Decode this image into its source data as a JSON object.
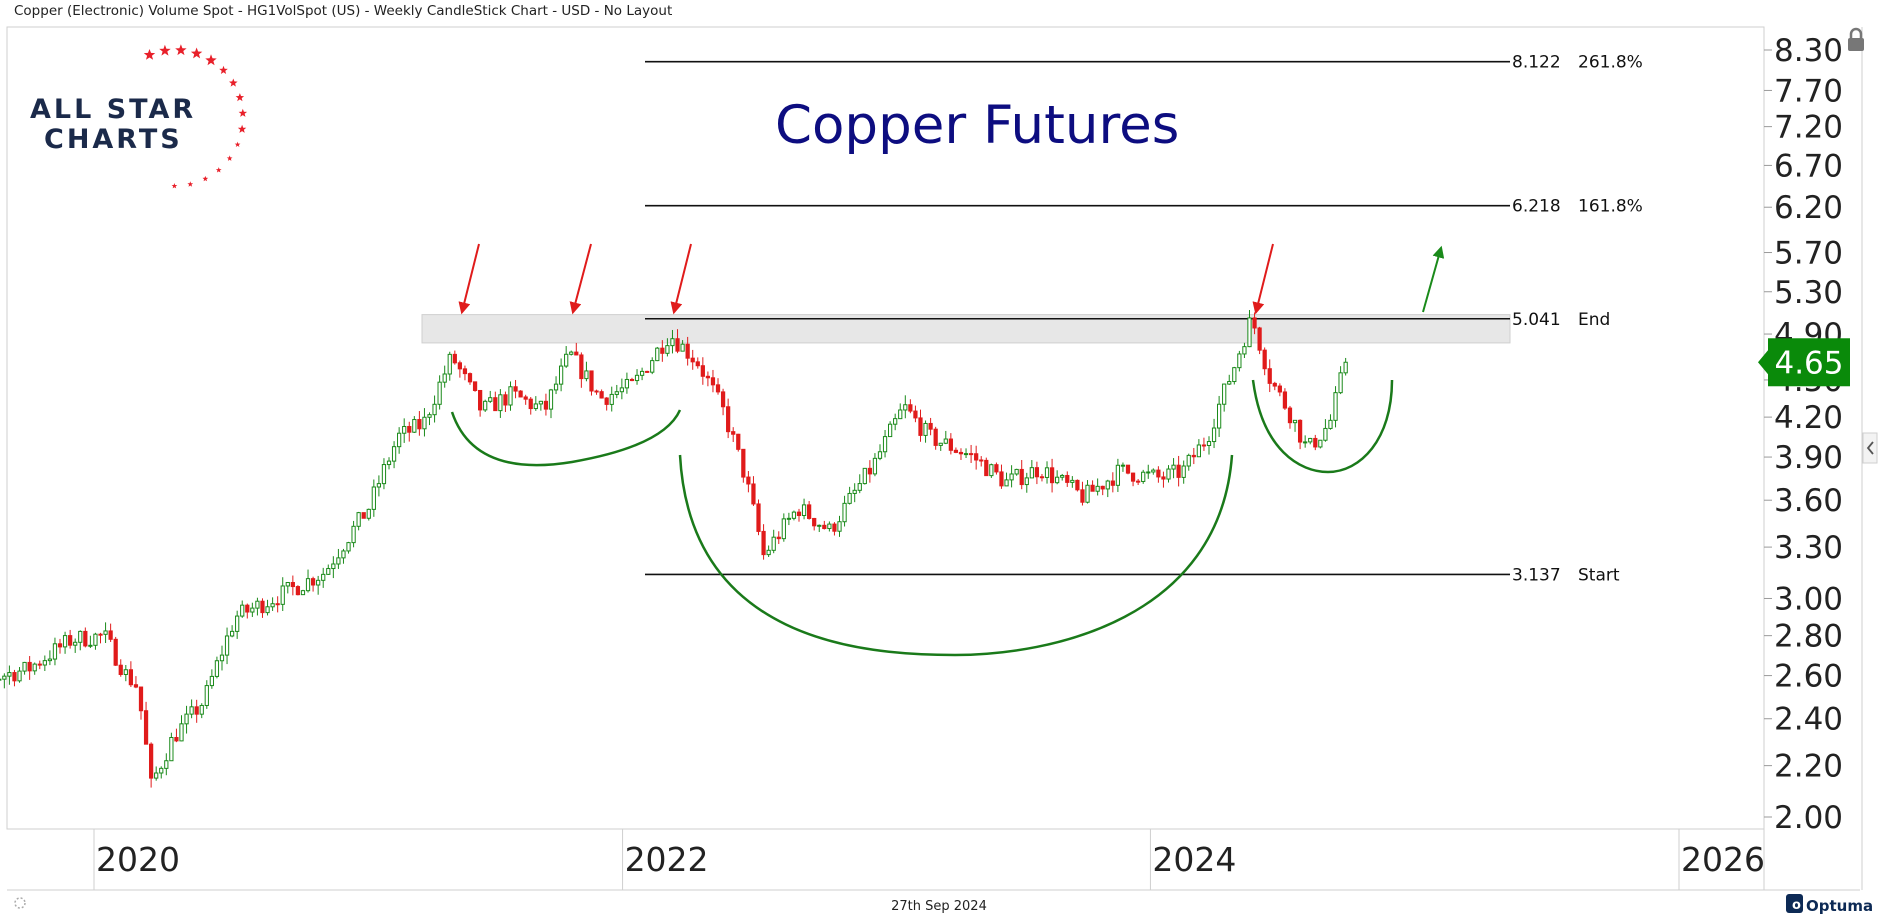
{
  "header": {
    "text": "Copper (Electronic) Volume Spot - HG1VolSpot (US) - Weekly CandleStick Chart - USD - No Layout"
  },
  "logo": {
    "line1": "ALL STAR",
    "line2": "CHARTS",
    "star_color": "#e8202a",
    "text_color": "#1b2a4a"
  },
  "footer": {
    "date": "27th Sep 2024",
    "brand": "Optuma",
    "brand_color": "#0d2a55"
  },
  "colors": {
    "up": "#1a8a1a",
    "down": "#e01b1b",
    "arc": "#1a7a1a",
    "title": "#0d0d80",
    "current_bg": "#0a8a0a"
  },
  "chart_data": {
    "type": "candlestick",
    "title": "Copper Futures",
    "frequency": "Weekly",
    "currency": "USD",
    "yscale": "log",
    "ylim": [
      1.98,
      8.5
    ],
    "xlim": [
      "2019-06-01",
      "2026-06-01"
    ],
    "y_ticks": [
      "2.00",
      "2.20",
      "2.40",
      "2.60",
      "2.80",
      "3.00",
      "3.30",
      "3.60",
      "3.90",
      "4.20",
      "4.50",
      "4.90",
      "5.30",
      "5.70",
      "6.20",
      "6.70",
      "7.20",
      "7.70",
      "8.30"
    ],
    "x_ticks": [
      "2020",
      "2022",
      "2024",
      "2026"
    ],
    "current_price": "4.65",
    "levels": [
      {
        "value": 8.122,
        "label": "8.122",
        "tag": "261.8%"
      },
      {
        "value": 6.218,
        "label": "6.218",
        "tag": "161.8%"
      },
      {
        "value": 5.041,
        "label": "5.041",
        "tag": "End"
      },
      {
        "value": 3.137,
        "label": "3.137",
        "tag": "Start"
      }
    ],
    "resistance_zone": [
      4.82,
      5.08
    ],
    "approx_weekly_close_path": [
      [
        "2019-06-01",
        2.62
      ],
      [
        "2019-08-01",
        2.58
      ],
      [
        "2019-10-01",
        2.63
      ],
      [
        "2019-12-01",
        2.78
      ],
      [
        "2020-01-15",
        2.8
      ],
      [
        "2020-02-15",
        2.6
      ],
      [
        "2020-03-01",
        2.55
      ],
      [
        "2020-03-20",
        2.12
      ],
      [
        "2020-04-20",
        2.32
      ],
      [
        "2020-06-01",
        2.48
      ],
      [
        "2020-07-15",
        2.9
      ],
      [
        "2020-09-15",
        3.02
      ],
      [
        "2020-11-15",
        3.15
      ],
      [
        "2021-01-15",
        3.55
      ],
      [
        "2021-02-25",
        4.05
      ],
      [
        "2021-04-01",
        4.15
      ],
      [
        "2021-05-10",
        4.7
      ],
      [
        "2021-06-20",
        4.25
      ],
      [
        "2021-08-01",
        4.38
      ],
      [
        "2021-09-15",
        4.25
      ],
      [
        "2021-10-20",
        4.72
      ],
      [
        "2021-12-01",
        4.35
      ],
      [
        "2022-01-15",
        4.45
      ],
      [
        "2022-03-07",
        4.9
      ],
      [
        "2022-04-15",
        4.65
      ],
      [
        "2022-05-20",
        4.25
      ],
      [
        "2022-06-20",
        3.75
      ],
      [
        "2022-07-15",
        3.25
      ],
      [
        "2022-09-01",
        3.55
      ],
      [
        "2022-10-15",
        3.4
      ],
      [
        "2022-12-15",
        3.85
      ],
      [
        "2023-01-25",
        4.28
      ],
      [
        "2023-03-01",
        4.05
      ],
      [
        "2023-05-01",
        3.9
      ],
      [
        "2023-06-15",
        3.72
      ],
      [
        "2023-08-01",
        3.82
      ],
      [
        "2023-10-01",
        3.62
      ],
      [
        "2023-11-20",
        3.8
      ],
      [
        "2024-01-15",
        3.75
      ],
      [
        "2024-02-15",
        3.8
      ],
      [
        "2024-03-20",
        4.05
      ],
      [
        "2024-04-25",
        4.6
      ],
      [
        "2024-05-20",
        5.05
      ],
      [
        "2024-06-15",
        4.5
      ],
      [
        "2024-07-15",
        4.2
      ],
      [
        "2024-08-05",
        3.95
      ],
      [
        "2024-09-05",
        4.15
      ],
      [
        "2024-09-27",
        4.65
      ]
    ],
    "annotations": [
      "resistance arrows x4",
      "upward arrow",
      "cup arcs",
      "handle arc"
    ]
  }
}
